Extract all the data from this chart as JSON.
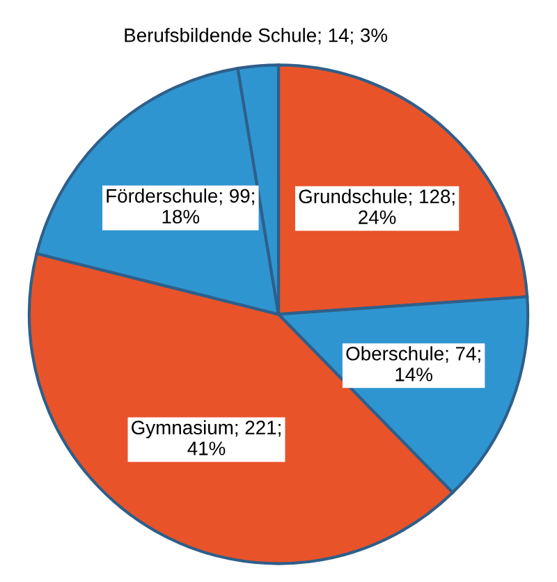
{
  "chart_data": {
    "type": "pie",
    "categories": [
      "Grundschule",
      "Oberschule",
      "Gymnasium",
      "Förderschule",
      "Berufsbildende Schule"
    ],
    "values": [
      128,
      74,
      221,
      99,
      14
    ],
    "colors": [
      "#e8532a",
      "#2f95d0",
      "#e8532a",
      "#2f95d0",
      "#2f95d0"
    ],
    "value_labels": [
      "128; 24%",
      "74; 14%",
      "221; 41%",
      "99; 18%",
      "14; 3%"
    ],
    "legend": false
  }
}
